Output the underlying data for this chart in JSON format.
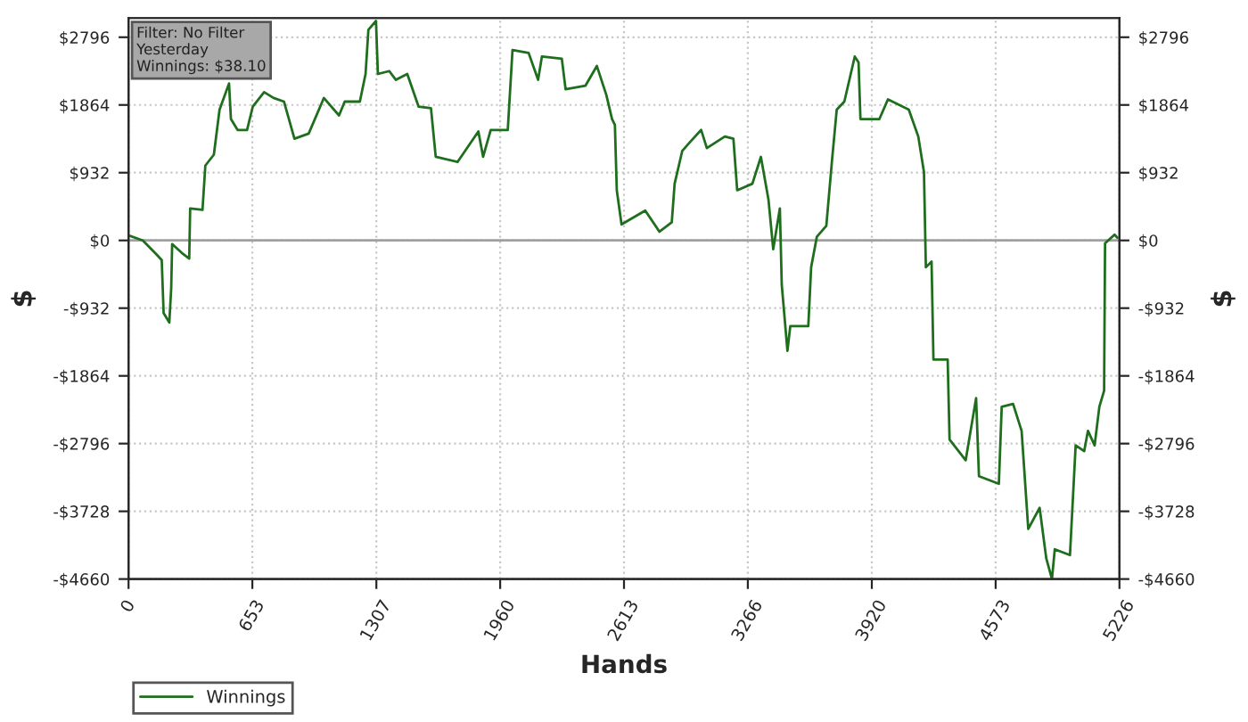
{
  "chart_data": {
    "type": "line",
    "xlabel": "Hands",
    "ylabel": "$",
    "y2label": "$",
    "annotations": [
      "Filter: No Filter\nYesterday\nWinnings: $38.10"
    ],
    "xlim": [
      0,
      5226
    ],
    "xticks": [
      0,
      653,
      1307,
      1960,
      2613,
      3266,
      3920,
      4573,
      5226
    ],
    "ylim": [
      -4660,
      3060
    ],
    "yticks": [
      {
        "value": -4660,
        "label": "-$4660"
      },
      {
        "value": -3728,
        "label": "-$3728"
      },
      {
        "value": -2796,
        "label": "-$2796"
      },
      {
        "value": -1864,
        "label": "-$1864"
      },
      {
        "value": -932,
        "label": "-$932"
      },
      {
        "value": 0,
        "label": "$0"
      },
      {
        "value": 932,
        "label": "$932"
      },
      {
        "value": 1864,
        "label": "$1864"
      },
      {
        "value": 2796,
        "label": "$2796"
      }
    ],
    "y2lim": [
      -4660,
      3060
    ],
    "y2ticks": [
      {
        "value": -4660,
        "label": "-$4660"
      },
      {
        "value": -3728,
        "label": "-$3728"
      },
      {
        "value": -2796,
        "label": "-$2796"
      },
      {
        "value": -1864,
        "label": "-$1864"
      },
      {
        "value": -932,
        "label": "-$932"
      },
      {
        "value": 0,
        "label": "$0"
      },
      {
        "value": 932,
        "label": "$932"
      },
      {
        "value": 1864,
        "label": "$1864"
      },
      {
        "value": 2796,
        "label": "$2796"
      }
    ],
    "grid": true,
    "legend": "bottom left",
    "line_style": "solid",
    "ref_lines": [
      {
        "axis": "y",
        "value": 0,
        "color": "#a0a0a0"
      }
    ],
    "series": [
      {
        "name": "Winnings",
        "color": "#1e6e1e",
        "x": [
          0,
          75,
          150,
          175,
          185,
          215,
          225,
          230,
          280,
          320,
          325,
          390,
          405,
          450,
          480,
          530,
          540,
          575,
          625,
          655,
          715,
          765,
          820,
          875,
          950,
          1030,
          1110,
          1140,
          1220,
          1250,
          1265,
          1305,
          1315,
          1375,
          1410,
          1470,
          1530,
          1595,
          1620,
          1735,
          1845,
          1870,
          1910,
          2000,
          2025,
          2110,
          2160,
          2180,
          2285,
          2305,
          2410,
          2470,
          2520,
          2550,
          2565,
          2575,
          2600,
          2725,
          2800,
          2865,
          2880,
          2920,
          2960,
          3020,
          3050,
          3145,
          3190,
          3210,
          3290,
          3335,
          3375,
          3400,
          3435,
          3445,
          3475,
          3490,
          3585,
          3600,
          3630,
          3680,
          3710,
          3735,
          3775,
          3830,
          3850,
          3860,
          3960,
          4005,
          4115,
          4165,
          4195,
          4205,
          4235,
          4245,
          4320,
          4330,
          4415,
          4470,
          4485,
          4590,
          4605,
          4665,
          4710,
          4745,
          4805,
          4840,
          4870,
          4885,
          4965,
          4995,
          5040,
          5060,
          5095,
          5120,
          5145,
          5150,
          5200,
          5215
        ],
        "values": [
          70,
          0,
          -200,
          -270,
          -1000,
          -1130,
          -660,
          -50,
          -170,
          -250,
          440,
          420,
          1030,
          1180,
          1800,
          2160,
          1670,
          1520,
          1520,
          1840,
          2040,
          1960,
          1910,
          1400,
          1470,
          1960,
          1720,
          1910,
          1910,
          2290,
          2900,
          3020,
          2290,
          2330,
          2210,
          2290,
          1840,
          1820,
          1150,
          1080,
          1500,
          1150,
          1520,
          1520,
          2620,
          2580,
          2210,
          2530,
          2500,
          2080,
          2130,
          2400,
          2000,
          1670,
          1590,
          690,
          220,
          410,
          120,
          250,
          780,
          1230,
          1350,
          1520,
          1270,
          1430,
          1400,
          690,
          780,
          1150,
          560,
          -120,
          440,
          -610,
          -1520,
          -1180,
          -1180,
          -370,
          50,
          200,
          1100,
          1800,
          1910,
          2530,
          2450,
          1670,
          1670,
          1940,
          1800,
          1430,
          940,
          -370,
          -290,
          -1640,
          -1640,
          -2740,
          -3025,
          -2170,
          -3245,
          -3350,
          -2290,
          -2250,
          -2620,
          -3970,
          -3680,
          -4375,
          -4660,
          -4250,
          -4330,
          -2820,
          -2900,
          -2620,
          -2820,
          -2290,
          -2070,
          -40,
          80,
          38
        ]
      }
    ]
  }
}
